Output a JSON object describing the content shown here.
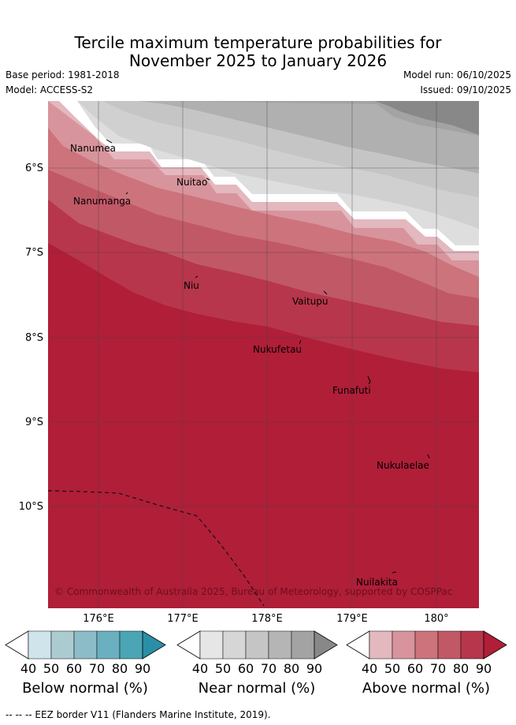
{
  "title_line1": "Tercile maximum temperature probabilities for",
  "title_line2": "November 2025 to January 2026",
  "base_period": "Base period: 1981-2018",
  "model": "Model: ACCESS-S2",
  "model_run": "Model run: 06/10/2025",
  "issued": "Issued: 09/10/2025",
  "lat_labels": [
    "6°S",
    "7°S",
    "8°S",
    "9°S",
    "10°S"
  ],
  "lon_labels": [
    "176°E",
    "177°E",
    "178°E",
    "179°E",
    "180°"
  ],
  "places": [
    "Nanumea",
    "Nanumanga",
    "Nuitao",
    "Niu",
    "Vaitupu",
    "Nukufetau",
    "Funafuti",
    "Nukulaelae",
    "Nuilakita"
  ],
  "copyright": "© Commonwealth of Australia 2025, Bureau of Meteorology, supported by COSPPac",
  "colorbars": [
    {
      "title": "Below normal (%)",
      "ticks": [
        "40",
        "50",
        "60",
        "70",
        "80",
        "90"
      ],
      "colors": [
        "#cfe5eb",
        "#abcbd1",
        "#8cbcc8",
        "#6bb0c0",
        "#4aa5b5",
        "#2a8fa6"
      ]
    },
    {
      "title": "Near normal (%)",
      "ticks": [
        "40",
        "50",
        "60",
        "70",
        "80",
        "90"
      ],
      "colors": [
        "#e6e6e6",
        "#d6d6d6",
        "#c5c5c5",
        "#b5b5b5",
        "#a3a3a3",
        "#888888"
      ]
    },
    {
      "title": "Above normal (%)",
      "ticks": [
        "40",
        "50",
        "60",
        "70",
        "80",
        "90"
      ],
      "colors": [
        "#e3b8bf",
        "#d8949c",
        "#cd737b",
        "#c15866",
        "#b7364b",
        "#b01e38"
      ]
    }
  ],
  "eez_note": "--  --  -- EEZ border V11 (Flanders Marine Institute, 2019)."
}
